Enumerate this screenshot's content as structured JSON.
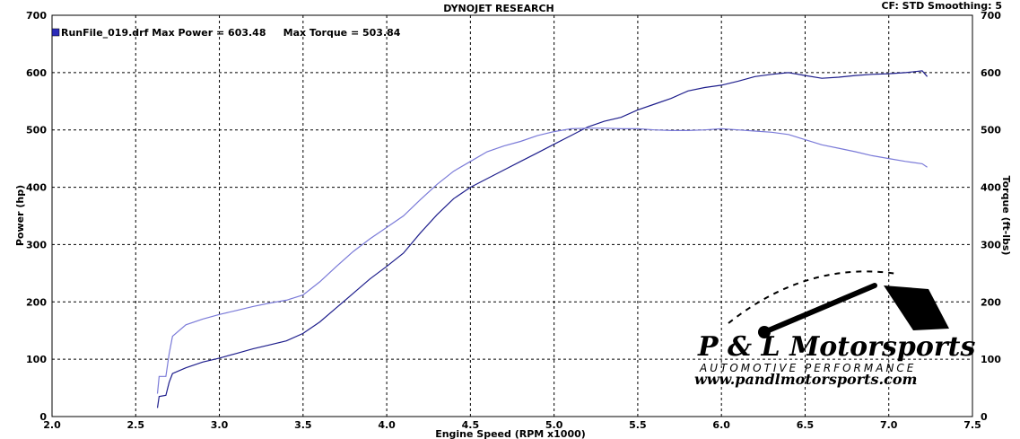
{
  "header": {
    "title": "DYNOJET RESEARCH",
    "settings": "CF: STD  Smoothing: 5"
  },
  "legend": {
    "entry": "RunFile_019.drf Max Power = 603.48     Max Torque = 503.84",
    "swatch_color": "#2b2bb8"
  },
  "logo": {
    "name": "P & L Motorsports",
    "tagline": "AUTOMOTIVE PERFORMANCE",
    "url": "www.pandlmotorsports.com"
  },
  "chart_data": {
    "type": "line",
    "title": "DYNOJET RESEARCH",
    "xlabel": "Engine Speed (RPM x1000)",
    "ylabel": "Power (hp)",
    "y2label": "Torque (ft-lbs)",
    "xlim": [
      2.0,
      7.5
    ],
    "ylim": [
      0,
      700
    ],
    "y2lim": [
      0,
      700
    ],
    "xticks": [
      "2.0",
      "2.5",
      "3.0",
      "3.5",
      "4.0",
      "4.5",
      "5.0",
      "5.5",
      "6.0",
      "6.5",
      "7.0",
      "7.5"
    ],
    "yticks": [
      "0",
      "100",
      "200",
      "300",
      "400",
      "500",
      "600",
      "700"
    ],
    "grid": true,
    "legend_position": "top-left",
    "series": [
      {
        "name": "",
        "kind": "power",
        "color": "#1e1e8c",
        "x": [
          2.63,
          2.64,
          2.68,
          2.7,
          2.72,
          2.8,
          2.9,
          3.0,
          3.1,
          3.2,
          3.3,
          3.4,
          3.5,
          3.6,
          3.7,
          3.8,
          3.9,
          4.0,
          4.1,
          4.2,
          4.3,
          4.4,
          4.5,
          4.6,
          4.7,
          4.8,
          4.9,
          5.0,
          5.1,
          5.2,
          5.3,
          5.4,
          5.5,
          5.6,
          5.7,
          5.8,
          5.9,
          6.0,
          6.1,
          6.2,
          6.3,
          6.4,
          6.5,
          6.6,
          6.7,
          6.8,
          6.9,
          7.0,
          7.1,
          7.2,
          7.23
        ],
        "y": [
          15,
          35,
          37,
          60,
          75,
          85,
          95,
          102,
          110,
          118,
          125,
          132,
          145,
          165,
          190,
          215,
          240,
          262,
          285,
          320,
          352,
          380,
          400,
          415,
          430,
          445,
          460,
          475,
          490,
          505,
          515,
          522,
          535,
          545,
          555,
          568,
          574,
          578,
          585,
          593,
          597,
          600,
          595,
          590,
          592,
          595,
          597,
          598,
          600,
          603,
          593
        ]
      },
      {
        "name": "",
        "kind": "torque",
        "color": "#7a7ad8",
        "x": [
          2.63,
          2.64,
          2.68,
          2.7,
          2.72,
          2.8,
          2.9,
          3.0,
          3.1,
          3.2,
          3.3,
          3.4,
          3.5,
          3.6,
          3.7,
          3.8,
          3.9,
          4.0,
          4.1,
          4.2,
          4.3,
          4.4,
          4.5,
          4.6,
          4.7,
          4.8,
          4.9,
          5.0,
          5.1,
          5.2,
          5.3,
          5.4,
          5.5,
          5.6,
          5.7,
          5.8,
          5.9,
          6.0,
          6.1,
          6.2,
          6.3,
          6.4,
          6.5,
          6.6,
          6.7,
          6.8,
          6.9,
          7.0,
          7.1,
          7.2,
          7.23
        ],
        "y": [
          40,
          70,
          70,
          110,
          140,
          160,
          170,
          178,
          185,
          192,
          198,
          203,
          212,
          235,
          262,
          288,
          310,
          330,
          350,
          378,
          405,
          428,
          445,
          462,
          472,
          480,
          490,
          497,
          502,
          503,
          503,
          502,
          502,
          500,
          499,
          499,
          500,
          502,
          500,
          498,
          496,
          492,
          483,
          474,
          468,
          462,
          455,
          450,
          445,
          441,
          435
        ]
      }
    ]
  }
}
